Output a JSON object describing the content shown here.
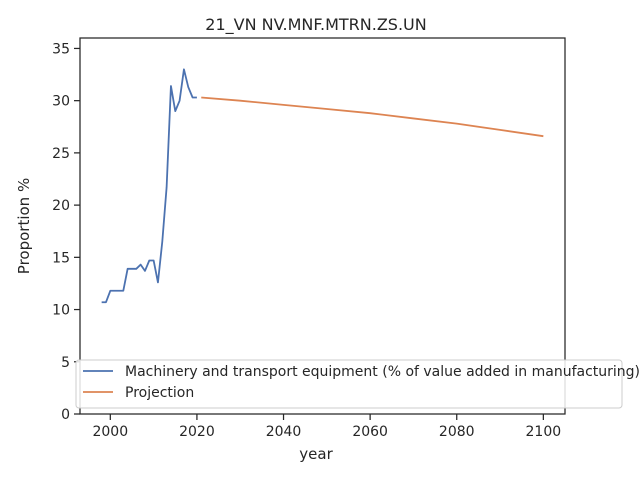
{
  "chart_data": {
    "type": "line",
    "title": "21_VN NV.MNF.MTRN.ZS.UN",
    "xlabel": "year",
    "ylabel": "Proportion %",
    "xlim": [
      1993,
      2105
    ],
    "ylim": [
      0,
      36
    ],
    "xticks": [
      2000,
      2020,
      2040,
      2060,
      2080,
      2100
    ],
    "yticks": [
      0,
      5,
      10,
      15,
      20,
      25,
      30,
      35
    ],
    "grid": false,
    "legend_position": "lower-right",
    "series": [
      {
        "name": "Machinery and transport equipment (% of value added in manufacturing)",
        "color": "#4c72b0",
        "x": [
          1998,
          1999,
          2000,
          2001,
          2002,
          2003,
          2004,
          2005,
          2006,
          2007,
          2008,
          2009,
          2010,
          2011,
          2012,
          2013,
          2014,
          2015,
          2016,
          2017,
          2018,
          2019,
          2020
        ],
        "y": [
          10.7,
          10.7,
          11.8,
          11.8,
          11.8,
          11.8,
          13.9,
          13.9,
          13.9,
          14.3,
          13.7,
          14.7,
          14.7,
          12.6,
          16.5,
          21.7,
          31.4,
          29.0,
          30.0,
          33.0,
          31.3,
          30.3,
          30.3
        ]
      },
      {
        "name": "Projection",
        "color": "#dd8452",
        "x": [
          2021,
          2030,
          2040,
          2050,
          2060,
          2070,
          2080,
          2090,
          2100
        ],
        "y": [
          30.3,
          30.0,
          29.6,
          29.2,
          28.8,
          28.3,
          27.8,
          27.2,
          26.6
        ]
      }
    ]
  }
}
